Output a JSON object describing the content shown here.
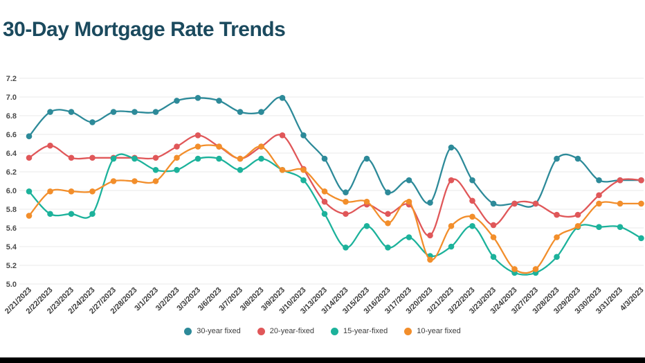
{
  "title": "30-Day Mortgage Rate Trends",
  "colors": {
    "title_text": "#1b4a5e",
    "gridline": "#e9e9e9",
    "axis_text": "#3b3b3b"
  },
  "chart_data": {
    "type": "line",
    "title": "30-Day Mortgage Rate Trends",
    "xlabel": "",
    "ylabel": "",
    "ylim": [
      5.0,
      7.2
    ],
    "ytick_step": 0.2,
    "yticks": [
      "7.2",
      "7.0",
      "6.8",
      "6.6",
      "6.4",
      "6.2",
      "6.0",
      "5.8",
      "5.6",
      "5.4",
      "5.2",
      "5.0"
    ],
    "grid": "horizontal",
    "legend_position": "bottom",
    "x": [
      "2/21/2023",
      "2/22/2023",
      "2/23/2023",
      "2/24/2023",
      "2/27/2023",
      "2/28/2023",
      "3/1/2023",
      "3/2/2023",
      "3/3/2023",
      "3/6/2023",
      "3/7/2023",
      "3/8/2023",
      "3/9/2023",
      "3/10/2023",
      "3/13/2023",
      "3/14/2023",
      "3/15/2023",
      "3/16/2023",
      "3/17/2023",
      "3/20/2023",
      "3/21/2023",
      "3/22/2023",
      "3/23/2023",
      "3/24/2023",
      "3/27/2023",
      "3/28/2023",
      "3/29/2023",
      "3/30/2023",
      "3/31/2023",
      "4/3/2023"
    ],
    "series": [
      {
        "name": "30-year fixed",
        "color": "#2d8a99",
        "values": [
          6.58,
          6.84,
          6.84,
          6.73,
          6.84,
          6.84,
          6.84,
          6.96,
          6.99,
          6.96,
          6.84,
          6.84,
          6.99,
          6.59,
          6.34,
          5.98,
          6.34,
          5.98,
          6.11,
          5.87,
          6.46,
          6.11,
          5.86,
          5.86,
          5.86,
          6.34,
          6.34,
          6.11,
          6.11,
          6.11
        ]
      },
      {
        "name": "20-year-fixed",
        "color": "#e05759",
        "values": [
          6.35,
          6.48,
          6.35,
          6.35,
          6.35,
          6.35,
          6.35,
          6.47,
          6.59,
          6.47,
          6.34,
          6.47,
          6.59,
          6.23,
          5.88,
          5.75,
          5.85,
          5.75,
          5.85,
          5.52,
          6.11,
          5.89,
          5.63,
          5.86,
          5.86,
          5.74,
          5.74,
          5.95,
          6.11,
          6.11
        ]
      },
      {
        "name": "15-year-fixed",
        "color": "#1cb29b",
        "values": [
          5.99,
          5.75,
          5.75,
          5.75,
          6.34,
          6.34,
          6.22,
          6.22,
          6.34,
          6.34,
          6.22,
          6.34,
          6.22,
          6.11,
          5.75,
          5.39,
          5.62,
          5.39,
          5.5,
          5.3,
          5.4,
          5.62,
          5.29,
          5.12,
          5.12,
          5.29,
          5.61,
          5.61,
          5.61,
          5.49
        ]
      },
      {
        "name": "10-year fixed",
        "color": "#f28e2b",
        "values": [
          5.73,
          5.99,
          5.99,
          5.99,
          6.1,
          6.1,
          6.1,
          6.35,
          6.47,
          6.47,
          6.34,
          6.47,
          6.22,
          6.22,
          5.99,
          5.88,
          5.88,
          5.65,
          5.88,
          5.26,
          5.62,
          5.72,
          5.5,
          5.16,
          5.16,
          5.5,
          5.62,
          5.86,
          5.86,
          5.86
        ]
      }
    ]
  }
}
